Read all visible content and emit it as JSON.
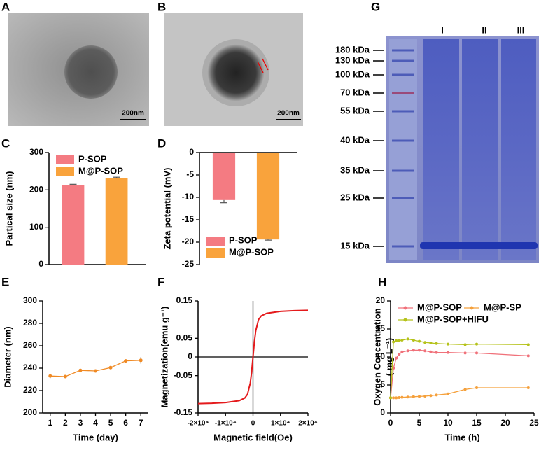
{
  "images": [
    {
      "panel": "A",
      "scale_bar": "200nm"
    },
    {
      "panel": "B",
      "scale_bar": "200nm"
    }
  ],
  "gel": {
    "panel": "G",
    "lanes": [
      "I",
      "II",
      "III"
    ],
    "markers": [
      "180 kDa",
      "130 kDa",
      "100 kDa",
      "70 kDa",
      "55 kDa",
      "40 kDa",
      "35 kDa",
      "25 kDa",
      "15 kDa"
    ]
  },
  "chart_data": [
    {
      "panel": "C",
      "type": "bar",
      "ylabel": "Partical size (nm)",
      "ylim": [
        0,
        300
      ],
      "yticks": [
        0,
        100,
        200,
        300
      ],
      "legend": "upper left",
      "series": [
        {
          "name": "P-SOP",
          "color": "#f47b82",
          "values": [
            213
          ],
          "errors": [
            2
          ]
        },
        {
          "name": "M@P-SOP",
          "color": "#f9a33c",
          "values": [
            232
          ],
          "errors": [
            2
          ]
        }
      ]
    },
    {
      "panel": "D",
      "type": "bar",
      "ylabel": "Zeta potential (mV)",
      "ylim": [
        -25,
        0
      ],
      "yticks": [
        0,
        -5,
        -10,
        -15,
        -20,
        -25
      ],
      "legend": "lower left",
      "series": [
        {
          "name": "P-SOP",
          "color": "#f47b82",
          "values": [
            -10.6
          ],
          "errors": [
            0.6
          ]
        },
        {
          "name": "M@P-SOP",
          "color": "#f9a33c",
          "values": [
            -19.4
          ],
          "errors": [
            0.15
          ]
        }
      ]
    },
    {
      "panel": "E",
      "type": "line",
      "xlabel": "Time (day)",
      "ylabel": "Diameter (nm)",
      "x": [
        1,
        2,
        3,
        4,
        5,
        6,
        7
      ],
      "xlim": [
        0.5,
        7.5
      ],
      "xticks": [
        1,
        2,
        3,
        4,
        5,
        6,
        7
      ],
      "ylim": [
        200,
        300
      ],
      "yticks": [
        200,
        220,
        240,
        260,
        280,
        300
      ],
      "series": [
        {
          "color": "#f08a24",
          "values": [
            233,
            232.5,
            238,
            237.5,
            240.5,
            246.5,
            247
          ],
          "errors": [
            2,
            1,
            1,
            1,
            1.5,
            1,
            3
          ],
          "marker": true
        }
      ]
    },
    {
      "panel": "F",
      "type": "line",
      "xlabel": "Magnetic field(Oe)",
      "ylabel": "Magnetization(emu g⁻¹)",
      "zero_axes": true,
      "x": [
        -20000,
        -15000,
        -10000,
        -5000,
        -3000,
        -2000,
        -1000,
        -500,
        0,
        500,
        1000,
        2000,
        3000,
        5000,
        10000,
        15000,
        20000
      ],
      "xlim": [
        -20000,
        20000
      ],
      "xticks": [
        {
          "value": -20000,
          "label": "-2×10⁴"
        },
        {
          "value": -10000,
          "label": "-1×10⁴"
        },
        0,
        {
          "value": 10000,
          "label": "1×10⁴"
        },
        {
          "value": 20000,
          "label": "2×10⁴"
        }
      ],
      "ylim": [
        -0.15,
        0.15
      ],
      "yticks": [
        -0.15,
        -0.05,
        0,
        0.05,
        0.15
      ],
      "series": [
        {
          "color": "#e41a1c",
          "values": [
            -0.125,
            -0.124,
            -0.122,
            -0.117,
            -0.11,
            -0.1,
            -0.07,
            -0.04,
            0,
            0.04,
            0.07,
            0.1,
            0.11,
            0.117,
            0.122,
            0.124,
            0.125
          ],
          "marker": false
        }
      ]
    },
    {
      "panel": "H",
      "type": "line",
      "xlabel": "Time (h)",
      "ylabel": [
        "Oxygen Concentration",
        "( mg L⁻¹)"
      ],
      "legend": "upper",
      "legend_columns": 2,
      "x": [
        0,
        0.5,
        1,
        1.5,
        2,
        3,
        4,
        5,
        6,
        7,
        8,
        10,
        13,
        15,
        24
      ],
      "xlim": [
        0,
        25
      ],
      "xticks": [
        0,
        5,
        10,
        15,
        20,
        25
      ],
      "ylim": [
        0,
        20
      ],
      "yticks": [
        0,
        5,
        10,
        15,
        20
      ],
      "series": [
        {
          "name": "M@P-SOP",
          "color": "#f0717a",
          "marker": true,
          "values": [
            2.7,
            8,
            9.8,
            10.5,
            10.9,
            11.1,
            11.2,
            11.2,
            11.1,
            10.9,
            10.8,
            10.8,
            10.7,
            10.7,
            10.2
          ]
        },
        {
          "name": "M@P-SP",
          "color": "#f5a03b",
          "marker": true,
          "values": [
            2.7,
            2.7,
            2.7,
            2.75,
            2.8,
            2.85,
            2.9,
            2.95,
            3.0,
            3.1,
            3.2,
            3.4,
            4.2,
            4.5,
            4.5
          ]
        },
        {
          "name": "M@P-SOP+HIFU",
          "color": "#b5c21a",
          "marker": true,
          "values": [
            2.7,
            12.7,
            12.9,
            12.9,
            13.0,
            13.2,
            13.0,
            12.8,
            12.6,
            12.5,
            12.4,
            12.3,
            12.2,
            12.3,
            12.2
          ]
        }
      ]
    }
  ]
}
